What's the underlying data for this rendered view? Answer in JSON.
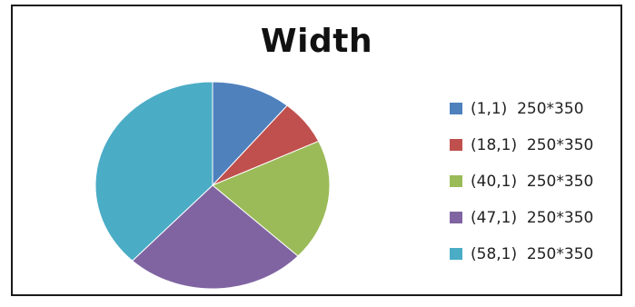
{
  "chart_data": {
    "type": "pie",
    "title": "Width",
    "legend_position": "right",
    "labels": [
      "(1,1)  250*350",
      "(18,1)  250*350",
      "(40,1)  250*350",
      "(47,1)  250*350",
      "(58,1)  250*350"
    ],
    "values": [
      11,
      7,
      19,
      25,
      38
    ],
    "colors": [
      "#4F81BD",
      "#C0504D",
      "#9BBB59",
      "#8064A2",
      "#4BACC6"
    ]
  }
}
